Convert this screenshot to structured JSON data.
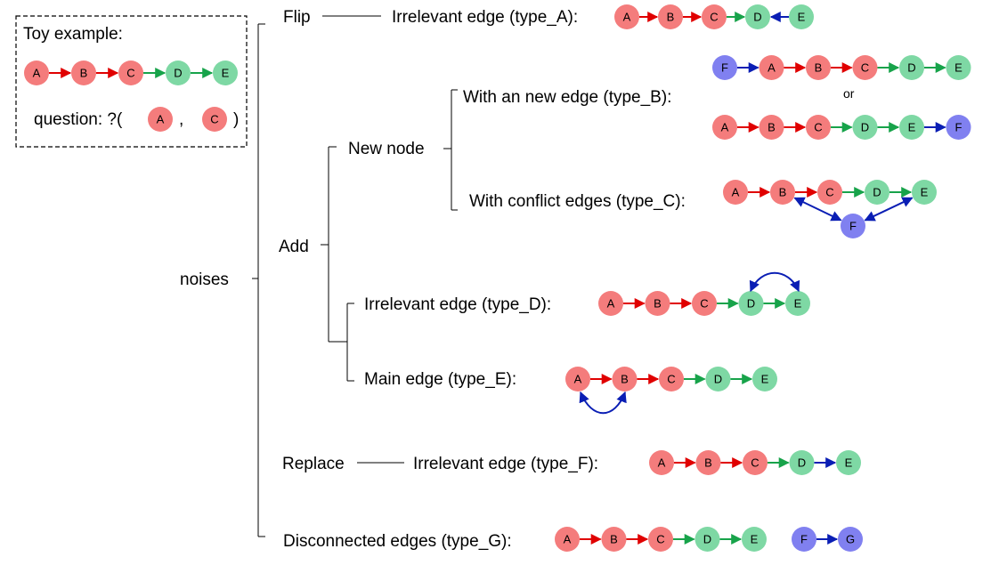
{
  "colors": {
    "red": "#f47c7c",
    "green": "#7ed8a4",
    "blue": "#8080f0",
    "red_edge": "#e00000",
    "green_edge": "#17a34a",
    "blue_edge": "#0a1eb4"
  },
  "toy": {
    "title": "Toy example:",
    "question_prefix": "question: ?(",
    "question_sep": ",",
    "question_suffix": ")",
    "nodes": [
      "A",
      "B",
      "C",
      "D",
      "E"
    ],
    "question_nodes": [
      "A",
      "C"
    ]
  },
  "labels": {
    "root": "noises",
    "flip": "Flip",
    "add": "Add",
    "new_node": "New node",
    "replace": "Replace",
    "type_a": "Irrelevant edge (type_A):",
    "type_b": "With an new edge (type_B):",
    "or": "or",
    "type_c": "With conflict edges (type_C):",
    "type_d": "Irrelevant edge (type_D):",
    "type_e": "Main edge (type_E):",
    "type_f": "Irrelevant edge (type_F):",
    "type_g": "Disconnected edges (type_G):"
  },
  "chains": {
    "type_a": {
      "nodes": [
        "A",
        "B",
        "C",
        "D",
        "E"
      ],
      "note": "edge D-E flipped (E→D)"
    },
    "type_b1": {
      "nodes": [
        "F",
        "A",
        "B",
        "C",
        "D",
        "E"
      ]
    },
    "type_b2": {
      "nodes": [
        "A",
        "B",
        "C",
        "D",
        "E",
        "F"
      ]
    },
    "type_c": {
      "nodes": [
        "A",
        "B",
        "C",
        "D",
        "E",
        "F"
      ]
    },
    "type_d": {
      "nodes": [
        "A",
        "B",
        "C",
        "D",
        "E"
      ]
    },
    "type_e": {
      "nodes": [
        "A",
        "B",
        "C",
        "D",
        "E"
      ]
    },
    "type_f": {
      "nodes": [
        "A",
        "B",
        "C",
        "D",
        "E"
      ]
    },
    "type_g": {
      "nodes": [
        "A",
        "B",
        "C",
        "D",
        "E",
        "F",
        "G"
      ]
    }
  }
}
